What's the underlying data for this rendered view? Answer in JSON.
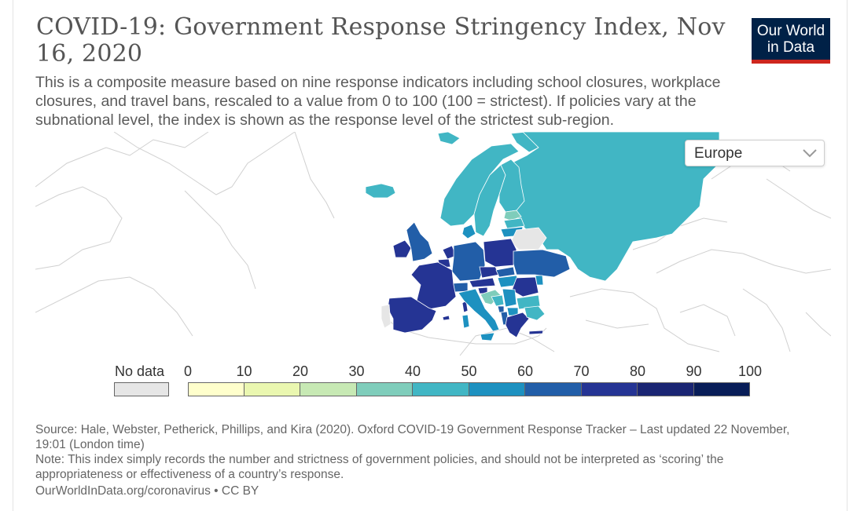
{
  "header": {
    "title": "COVID-19: Government Response Stringency Index, Nov 16, 2020",
    "subtitle": "This is a composite measure based on nine response indicators including school closures, workplace closures, and travel bans, rescaled to a value from 0 to 100 (100 = strictest). If policies vary at the subnational level, the index is shown as the response level of the strictest sub-region."
  },
  "logo": {
    "line1": "Our World",
    "line2": "in Data",
    "bg_color": "#002147",
    "accent_color": "#ce261e"
  },
  "region_selector": {
    "selected": "Europe",
    "icon": "chevron-down-icon"
  },
  "legend": {
    "no_data_label": "No data",
    "no_data_color": "#e6e6e6",
    "ticks": [
      "0",
      "10",
      "20",
      "30",
      "40",
      "50",
      "60",
      "70",
      "80",
      "90",
      "100"
    ],
    "bins": [
      {
        "from": 0,
        "to": 10,
        "color": "#ffffcc"
      },
      {
        "from": 10,
        "to": 20,
        "color": "#eaf7b0"
      },
      {
        "from": 20,
        "to": 30,
        "color": "#c7e9b4"
      },
      {
        "from": 30,
        "to": 40,
        "color": "#7fcdbb"
      },
      {
        "from": 40,
        "to": 50,
        "color": "#41b6c4"
      },
      {
        "from": 50,
        "to": 60,
        "color": "#1d91c0"
      },
      {
        "from": 60,
        "to": 70,
        "color": "#225ea8"
      },
      {
        "from": 70,
        "to": 80,
        "color": "#253494"
      },
      {
        "from": 80,
        "to": 90,
        "color": "#1a2573"
      },
      {
        "from": 90,
        "to": 100,
        "color": "#081d58"
      }
    ]
  },
  "map": {
    "region": "Europe",
    "date": "Nov 16, 2020"
  },
  "footer": {
    "source": "Source: Hale, Webster, Petherick, Phillips, and Kira (2020). Oxford COVID-19 Government Response Tracker – Last updated 22 November, 19:01 (London time)",
    "note": "Note: This index simply records the number and strictness of government policies, and should not be interpreted as ‘scoring’ the appropriateness or effectiveness of a country’s response.",
    "url": "OurWorldInData.org/coronavirus",
    "license": " • CC BY"
  }
}
